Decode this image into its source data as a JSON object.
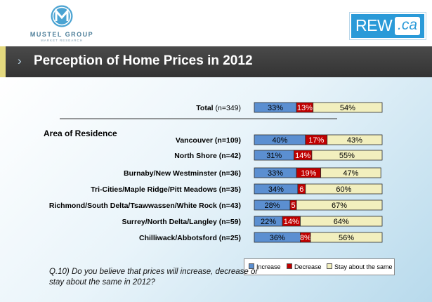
{
  "header": {
    "logo_name": "MUSTEL GROUP",
    "logo_sub": "MARKET RESEARCH",
    "partner_left": "REW",
    "partner_right": ".ca"
  },
  "title": "Perception of Home Prices in 2012",
  "colors": {
    "increase": "#5b8fd1",
    "decrease": "#c00000",
    "same": "#f2efbe",
    "band": "#3c3c3c",
    "band_accent": "#e3d87e"
  },
  "group_label": "Area of Residence",
  "chart_data": {
    "type": "bar",
    "orientation": "horizontal",
    "stacked": true,
    "title": "Perception of Home Prices in 2012",
    "xlim": [
      0,
      100
    ],
    "legend_position": "bottom-right",
    "categories": [
      {
        "name": "Total",
        "n": "(n=349)"
      },
      {
        "name": "Vancouver",
        "n": "(n=109)"
      },
      {
        "name": "North Shore",
        "n": "(n=42)"
      },
      {
        "name": "Burnaby/New Westminster",
        "n": "(n=36)"
      },
      {
        "name": "Tri-Cities/Maple Ridge/Pitt Meadows",
        "n": "(n=35)"
      },
      {
        "name": "Richmond/South Delta/Tsawwassen/White Rock",
        "n": "(n=43)"
      },
      {
        "name": "Surrey/North Delta/Langley",
        "n": "(n=59)"
      },
      {
        "name": "Chilliwack/Abbotsford",
        "n": "(n=25)"
      }
    ],
    "series": [
      {
        "name": "Increase",
        "values": [
          33,
          40,
          31,
          33,
          34,
          28,
          22,
          36
        ],
        "labels": [
          "33%",
          "40%",
          "31%",
          "33%",
          "34%",
          "28%",
          "22%",
          "36%"
        ]
      },
      {
        "name": "Decrease",
        "values": [
          13,
          17,
          14,
          19,
          6,
          5,
          14,
          8
        ],
        "labels": [
          "13%",
          "17%",
          "14%",
          "19%",
          "6",
          "5",
          "14%",
          "8%"
        ]
      },
      {
        "name": "Stay about the same",
        "values": [
          54,
          43,
          55,
          47,
          60,
          67,
          64,
          56
        ],
        "labels": [
          "54%",
          "43%",
          "55%",
          "47%",
          "60%",
          "67%",
          "64%",
          "56%"
        ]
      }
    ]
  },
  "question": "Q.10) Do you believe that prices will increase, decrease or stay about the same in 2012?"
}
